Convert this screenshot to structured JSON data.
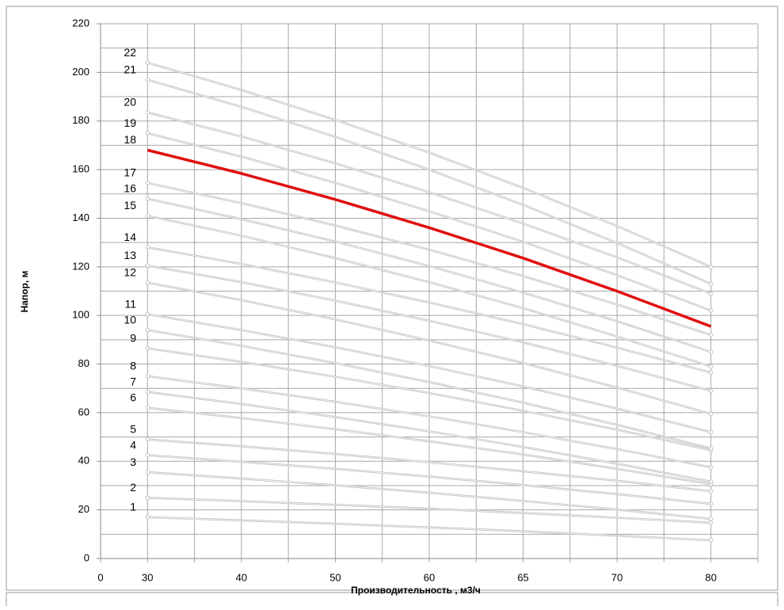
{
  "chart_data": {
    "type": "line",
    "y_label": "Напор, м",
    "x_label": "Производительность , м3/ч",
    "categories": [
      "0",
      "30",
      "40",
      "50",
      "60",
      "65",
      "70",
      "80"
    ],
    "ylim": [
      0,
      220
    ],
    "yticks": [
      0,
      20,
      40,
      60,
      80,
      100,
      120,
      140,
      160,
      180,
      200,
      220
    ],
    "grid": true,
    "series": [
      {
        "name": "1",
        "color": "#c4c4c4",
        "values": [
          null,
          17,
          15.7,
          14.3,
          12.8,
          11.2,
          9.4,
          7.5
        ]
      },
      {
        "name": "2",
        "color": "#c4c4c4",
        "values": [
          null,
          25,
          23.6,
          22.1,
          20.5,
          18.7,
          16.8,
          14.7
        ]
      },
      {
        "name": "3",
        "color": "#c4c4c4",
        "values": [
          null,
          35.5,
          32.9,
          30.1,
          27.1,
          23.7,
          20.1,
          16.3
        ]
      },
      {
        "name": "4",
        "color": "#c4c4c4",
        "values": [
          null,
          42.5,
          39.8,
          36.9,
          33.7,
          30.2,
          26.5,
          22.5
        ]
      },
      {
        "name": "5",
        "color": "#c4c4c4",
        "values": [
          null,
          49,
          46.2,
          43,
          39.6,
          35.9,
          32,
          27.7
        ]
      },
      {
        "name": "6",
        "color": "#c4c4c4",
        "values": [
          null,
          62,
          57.8,
          53.2,
          48.2,
          42.8,
          36.9,
          30.6
        ]
      },
      {
        "name": "7",
        "color": "#c4c4c4",
        "values": [
          null,
          68.5,
          63.6,
          58.2,
          52.3,
          45.9,
          39,
          31.6
        ]
      },
      {
        "name": "8",
        "color": "#c4c4c4",
        "values": [
          null,
          75,
          70,
          64.5,
          58.5,
          52,
          45,
          37.5
        ]
      },
      {
        "name": "9",
        "color": "#c4c4c4",
        "values": [
          null,
          86.5,
          80.9,
          74.8,
          68.1,
          60.8,
          53,
          44.6
        ]
      },
      {
        "name": "10",
        "color": "#c4c4c4",
        "values": [
          null,
          94,
          87.5,
          80.4,
          72.6,
          64.1,
          55,
          45.3
        ]
      },
      {
        "name": "11",
        "color": "#c4c4c4",
        "values": [
          null,
          100.5,
          94,
          86.9,
          79.2,
          70.8,
          61.7,
          52
        ]
      },
      {
        "name": "12",
        "color": "#c4c4c4",
        "values": [
          null,
          113.5,
          106.3,
          98.4,
          89.7,
          80.4,
          70.3,
          59.5
        ]
      },
      {
        "name": "13",
        "color": "#c4c4c4",
        "values": [
          null,
          120.5,
          113.7,
          106.1,
          97.8,
          88.9,
          79.3,
          69
        ]
      },
      {
        "name": "14",
        "color": "#c4c4c4",
        "values": [
          null,
          128,
          121.2,
          113.6,
          105.3,
          96.4,
          86.8,
          76.5
        ]
      },
      {
        "name": "15",
        "color": "#c4c4c4",
        "values": [
          null,
          141,
          132.8,
          123.6,
          113.7,
          103,
          91.4,
          79
        ]
      },
      {
        "name": "16",
        "color": "#c4c4c4",
        "values": [
          null,
          148,
          139.6,
          130.4,
          120.3,
          109.4,
          97.6,
          85
        ]
      },
      {
        "name": "17",
        "color": "#c4c4c4",
        "values": [
          null,
          154.5,
          146.2,
          137,
          127,
          116.2,
          104.5,
          92
        ]
      },
      {
        "name": "18",
        "color": "#e01010",
        "values": [
          null,
          168,
          158.4,
          147.7,
          136.1,
          123.6,
          110,
          95.5
        ]
      },
      {
        "name": "19",
        "color": "#c4c4c4",
        "values": [
          null,
          175,
          165.3,
          154.6,
          142.9,
          130.3,
          116.6,
          102
        ]
      },
      {
        "name": "20",
        "color": "#c4c4c4",
        "values": [
          null,
          183.5,
          173.6,
          162.6,
          150.7,
          137.8,
          123.9,
          109
        ]
      },
      {
        "name": "21",
        "color": "#c4c4c4",
        "values": [
          null,
          197,
          185.8,
          173.5,
          160,
          145.5,
          129.8,
          113
        ]
      },
      {
        "name": "22",
        "color": "#c4c4c4",
        "values": [
          null,
          204,
          192.8,
          180.5,
          167,
          152.5,
          136.8,
          120
        ]
      }
    ]
  }
}
